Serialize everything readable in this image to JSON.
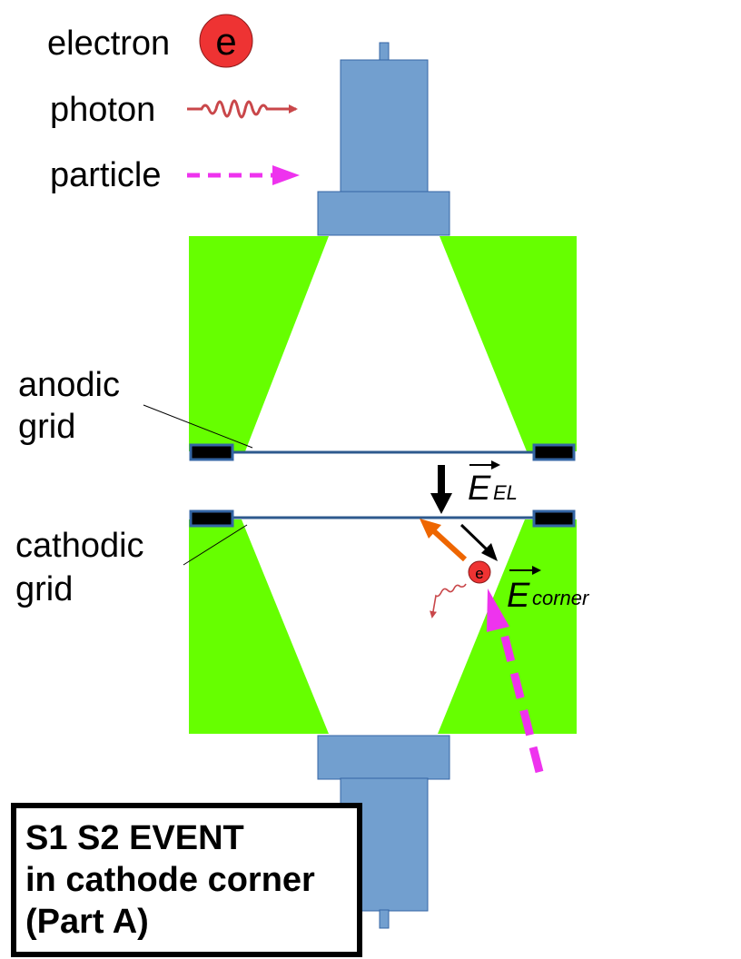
{
  "legend": {
    "electron_label": "electron",
    "electron_symbol": "e",
    "photon_label": "photon",
    "particle_label": "particle"
  },
  "labels": {
    "anodic_line1": "anodic",
    "anodic_line2": "grid",
    "cathodic_line1": "cathodic",
    "cathodic_line2": "grid"
  },
  "fields": {
    "el_symbol": "E",
    "el_subscript": "EL",
    "corner_symbol": "E",
    "corner_subscript": "corner"
  },
  "event_electron_symbol": "e",
  "title": {
    "line1": "S1 S2 EVENT",
    "line2": "in cathode corner",
    "line3": "(Part A)"
  },
  "colors": {
    "pmt_blue": "#729fcf",
    "pmt_border": "#3465a4",
    "insulator_green": "#66ff00",
    "grid_blue": "#2e5a8e",
    "electron_red": "#ee3333",
    "photon_red": "#c9474a",
    "particle_magenta": "#ee33ee",
    "arrow_orange": "#ee6600"
  }
}
